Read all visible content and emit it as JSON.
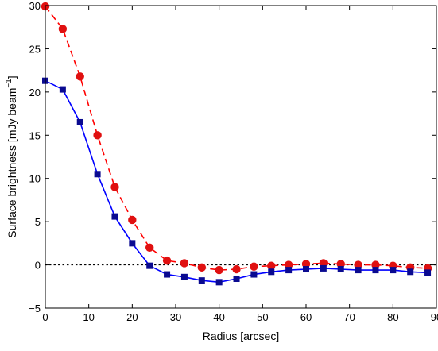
{
  "chart_data": {
    "type": "line",
    "title": "",
    "xlabel": "Radius [arcsec]",
    "ylabel": "Surface brightness [mJy beam",
    "ylabel_sup": "−1",
    "ylabel_close": "]",
    "xlim": [
      0,
      90
    ],
    "ylim": [
      -5,
      30
    ],
    "xticks": [
      0,
      10,
      20,
      30,
      40,
      50,
      60,
      70,
      80,
      90
    ],
    "yticks": [
      -5,
      0,
      5,
      10,
      15,
      20,
      25,
      30
    ],
    "xtick_labels": [
      "0",
      "10",
      "20",
      "30",
      "40",
      "50",
      "60",
      "70",
      "80",
      "90"
    ],
    "ytick_labels": [
      "−5",
      "0",
      "5",
      "10",
      "15",
      "20",
      "25",
      "30"
    ],
    "grid": false,
    "legend": "none",
    "reference_line": {
      "y": 0,
      "style": "dotted",
      "color": "#000000"
    },
    "series": [
      {
        "style": "dashed",
        "marker": "circle",
        "color": "#ff0000",
        "marker_color": "#e01010",
        "x": [
          0,
          4,
          8,
          12,
          16,
          20,
          24,
          28,
          32,
          36,
          40,
          44,
          48,
          52,
          56,
          60,
          64,
          68,
          72,
          76,
          80,
          84,
          88
        ],
        "y": [
          29.9,
          27.3,
          21.8,
          15.0,
          9.0,
          5.2,
          2.0,
          0.5,
          0.2,
          -0.3,
          -0.6,
          -0.5,
          -0.2,
          -0.1,
          0.0,
          0.1,
          0.2,
          0.1,
          0.0,
          0.0,
          -0.1,
          -0.3,
          -0.4
        ]
      },
      {
        "style": "solid",
        "marker": "square",
        "color": "#0000ff",
        "marker_color": "#0a0a90",
        "x": [
          0,
          4,
          8,
          12,
          16,
          20,
          24,
          28,
          32,
          36,
          40,
          44,
          48,
          52,
          56,
          60,
          64,
          68,
          72,
          76,
          80,
          84,
          88
        ],
        "y": [
          21.3,
          20.3,
          16.5,
          10.5,
          5.6,
          2.5,
          -0.1,
          -1.1,
          -1.4,
          -1.8,
          -2.0,
          -1.6,
          -1.1,
          -0.8,
          -0.6,
          -0.5,
          -0.4,
          -0.5,
          -0.6,
          -0.6,
          -0.6,
          -0.8,
          -0.9
        ]
      }
    ]
  }
}
